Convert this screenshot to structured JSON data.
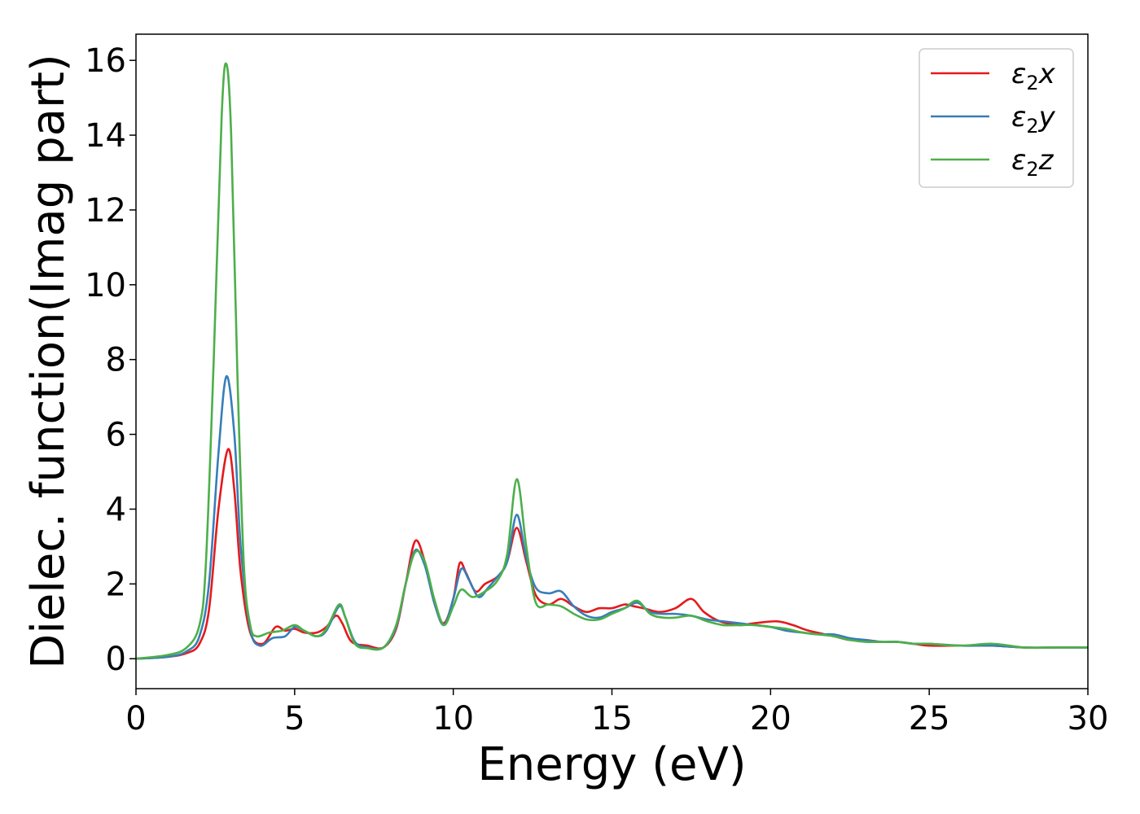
{
  "chart_data": {
    "type": "line",
    "title": "",
    "xlabel": "Energy (eV)",
    "ylabel": "Dielec. function(Imag part)",
    "xlim": [
      0,
      30
    ],
    "ylim": [
      -0.8,
      16.7
    ],
    "xticks": [
      "0",
      "5",
      "10",
      "15",
      "20",
      "25",
      "30"
    ],
    "yticks": [
      "0",
      "2",
      "4",
      "6",
      "8",
      "10",
      "12",
      "14",
      "16"
    ],
    "grid": false,
    "legend_position": "top-right",
    "series": [
      {
        "name": "ε2x",
        "legend": {
          "main": "ε",
          "sub": "2",
          "tail": "x"
        },
        "color": "#e41a1c",
        "points": [
          [
            0,
            0
          ],
          [
            1,
            0.05
          ],
          [
            1.6,
            0.15
          ],
          [
            2,
            0.4
          ],
          [
            2.3,
            1.3
          ],
          [
            2.6,
            4.0
          ],
          [
            2.9,
            5.6
          ],
          [
            3.1,
            4.5
          ],
          [
            3.3,
            2.3
          ],
          [
            3.6,
            0.7
          ],
          [
            4.0,
            0.4
          ],
          [
            4.4,
            0.85
          ],
          [
            4.7,
            0.75
          ],
          [
            5.0,
            0.8
          ],
          [
            5.3,
            0.7
          ],
          [
            5.7,
            0.7
          ],
          [
            6.0,
            0.85
          ],
          [
            6.3,
            1.15
          ],
          [
            6.5,
            0.95
          ],
          [
            6.8,
            0.45
          ],
          [
            7.3,
            0.35
          ],
          [
            7.8,
            0.3
          ],
          [
            8.2,
            0.8
          ],
          [
            8.5,
            2.0
          ],
          [
            8.8,
            3.15
          ],
          [
            9.1,
            2.6
          ],
          [
            9.4,
            1.5
          ],
          [
            9.7,
            0.95
          ],
          [
            10.0,
            1.6
          ],
          [
            10.2,
            2.55
          ],
          [
            10.4,
            2.3
          ],
          [
            10.7,
            1.8
          ],
          [
            11.0,
            2.0
          ],
          [
            11.4,
            2.2
          ],
          [
            11.7,
            2.6
          ],
          [
            12.0,
            3.5
          ],
          [
            12.3,
            2.6
          ],
          [
            12.6,
            1.7
          ],
          [
            13.0,
            1.45
          ],
          [
            13.4,
            1.6
          ],
          [
            13.8,
            1.4
          ],
          [
            14.2,
            1.25
          ],
          [
            14.6,
            1.35
          ],
          [
            15.0,
            1.35
          ],
          [
            15.4,
            1.45
          ],
          [
            15.7,
            1.4
          ],
          [
            16.0,
            1.35
          ],
          [
            16.5,
            1.25
          ],
          [
            17.0,
            1.35
          ],
          [
            17.5,
            1.6
          ],
          [
            17.9,
            1.25
          ],
          [
            18.4,
            1.0
          ],
          [
            19.0,
            0.9
          ],
          [
            19.5,
            0.95
          ],
          [
            20.2,
            1.0
          ],
          [
            20.7,
            0.9
          ],
          [
            21.2,
            0.75
          ],
          [
            22.0,
            0.6
          ],
          [
            22.5,
            0.5
          ],
          [
            23.0,
            0.5
          ],
          [
            23.5,
            0.45
          ],
          [
            24.0,
            0.45
          ],
          [
            24.5,
            0.4
          ],
          [
            25.0,
            0.35
          ],
          [
            26.0,
            0.35
          ],
          [
            27.0,
            0.35
          ],
          [
            28.0,
            0.3
          ],
          [
            29.0,
            0.3
          ],
          [
            30.0,
            0.3
          ]
        ]
      },
      {
        "name": "ε2y",
        "legend": {
          "main": "ε",
          "sub": "2",
          "tail": "y"
        },
        "color": "#377eb8",
        "points": [
          [
            0,
            0
          ],
          [
            1,
            0.05
          ],
          [
            1.6,
            0.2
          ],
          [
            2,
            0.6
          ],
          [
            2.3,
            2.0
          ],
          [
            2.6,
            5.5
          ],
          [
            2.85,
            7.55
          ],
          [
            3.1,
            6.0
          ],
          [
            3.3,
            3.0
          ],
          [
            3.6,
            0.8
          ],
          [
            3.9,
            0.35
          ],
          [
            4.3,
            0.55
          ],
          [
            4.7,
            0.6
          ],
          [
            5.0,
            0.85
          ],
          [
            5.3,
            0.75
          ],
          [
            5.7,
            0.6
          ],
          [
            6.0,
            0.75
          ],
          [
            6.4,
            1.4
          ],
          [
            6.6,
            1.1
          ],
          [
            6.9,
            0.45
          ],
          [
            7.3,
            0.3
          ],
          [
            7.8,
            0.3
          ],
          [
            8.2,
            0.85
          ],
          [
            8.5,
            2.0
          ],
          [
            8.8,
            2.9
          ],
          [
            9.1,
            2.5
          ],
          [
            9.4,
            1.5
          ],
          [
            9.7,
            0.9
          ],
          [
            10.0,
            1.6
          ],
          [
            10.25,
            2.4
          ],
          [
            10.5,
            2.1
          ],
          [
            10.8,
            1.65
          ],
          [
            11.1,
            1.9
          ],
          [
            11.4,
            2.2
          ],
          [
            11.7,
            2.6
          ],
          [
            12.0,
            3.85
          ],
          [
            12.3,
            2.7
          ],
          [
            12.6,
            1.9
          ],
          [
            13.0,
            1.75
          ],
          [
            13.4,
            1.8
          ],
          [
            13.8,
            1.4
          ],
          [
            14.2,
            1.15
          ],
          [
            14.6,
            1.1
          ],
          [
            15.0,
            1.25
          ],
          [
            15.4,
            1.35
          ],
          [
            15.8,
            1.5
          ],
          [
            16.2,
            1.25
          ],
          [
            16.6,
            1.2
          ],
          [
            17.0,
            1.2
          ],
          [
            17.5,
            1.15
          ],
          [
            18.0,
            1.05
          ],
          [
            18.5,
            1.0
          ],
          [
            19.0,
            0.95
          ],
          [
            19.5,
            0.9
          ],
          [
            20.0,
            0.85
          ],
          [
            20.5,
            0.75
          ],
          [
            21.0,
            0.7
          ],
          [
            21.5,
            0.65
          ],
          [
            22.0,
            0.65
          ],
          [
            22.5,
            0.55
          ],
          [
            23.0,
            0.5
          ],
          [
            23.5,
            0.45
          ],
          [
            24.0,
            0.45
          ],
          [
            24.5,
            0.4
          ],
          [
            25.0,
            0.4
          ],
          [
            26.0,
            0.35
          ],
          [
            27.0,
            0.35
          ],
          [
            28.0,
            0.3
          ],
          [
            29.0,
            0.3
          ],
          [
            30.0,
            0.3
          ]
        ]
      },
      {
        "name": "ε2z",
        "legend": {
          "main": "ε",
          "sub": "2",
          "tail": "z"
        },
        "color": "#4daf4a",
        "points": [
          [
            0,
            0
          ],
          [
            1,
            0.1
          ],
          [
            1.6,
            0.3
          ],
          [
            2,
            0.9
          ],
          [
            2.2,
            2.5
          ],
          [
            2.45,
            8.0
          ],
          [
            2.7,
            14.5
          ],
          [
            2.85,
            15.9
          ],
          [
            3.0,
            14.0
          ],
          [
            3.2,
            7.5
          ],
          [
            3.4,
            2.5
          ],
          [
            3.6,
            0.9
          ],
          [
            3.8,
            0.6
          ],
          [
            4.2,
            0.7
          ],
          [
            4.6,
            0.75
          ],
          [
            5.0,
            0.9
          ],
          [
            5.3,
            0.75
          ],
          [
            5.7,
            0.6
          ],
          [
            6.0,
            0.8
          ],
          [
            6.4,
            1.45
          ],
          [
            6.6,
            1.1
          ],
          [
            6.9,
            0.4
          ],
          [
            7.3,
            0.28
          ],
          [
            7.8,
            0.3
          ],
          [
            8.2,
            0.9
          ],
          [
            8.5,
            2.0
          ],
          [
            8.8,
            2.85
          ],
          [
            9.1,
            2.6
          ],
          [
            9.4,
            1.6
          ],
          [
            9.7,
            0.9
          ],
          [
            10.0,
            1.4
          ],
          [
            10.25,
            1.85
          ],
          [
            10.6,
            1.65
          ],
          [
            11.0,
            1.8
          ],
          [
            11.4,
            2.1
          ],
          [
            11.7,
            2.8
          ],
          [
            12.0,
            4.8
          ],
          [
            12.3,
            3.0
          ],
          [
            12.6,
            1.5
          ],
          [
            13.0,
            1.45
          ],
          [
            13.4,
            1.4
          ],
          [
            13.8,
            1.2
          ],
          [
            14.2,
            1.05
          ],
          [
            14.6,
            1.05
          ],
          [
            15.0,
            1.2
          ],
          [
            15.4,
            1.35
          ],
          [
            15.8,
            1.55
          ],
          [
            16.2,
            1.2
          ],
          [
            16.6,
            1.1
          ],
          [
            17.0,
            1.1
          ],
          [
            17.5,
            1.15
          ],
          [
            18.0,
            1.0
          ],
          [
            18.5,
            0.9
          ],
          [
            19.0,
            0.9
          ],
          [
            19.5,
            0.9
          ],
          [
            20.0,
            0.85
          ],
          [
            20.5,
            0.8
          ],
          [
            21.0,
            0.7
          ],
          [
            21.5,
            0.65
          ],
          [
            22.0,
            0.6
          ],
          [
            22.5,
            0.5
          ],
          [
            23.0,
            0.45
          ],
          [
            23.5,
            0.45
          ],
          [
            24.0,
            0.45
          ],
          [
            24.5,
            0.4
          ],
          [
            25.0,
            0.4
          ],
          [
            26.0,
            0.35
          ],
          [
            27.0,
            0.4
          ],
          [
            28.0,
            0.3
          ],
          [
            29.0,
            0.3
          ],
          [
            30.0,
            0.3
          ]
        ]
      }
    ]
  }
}
